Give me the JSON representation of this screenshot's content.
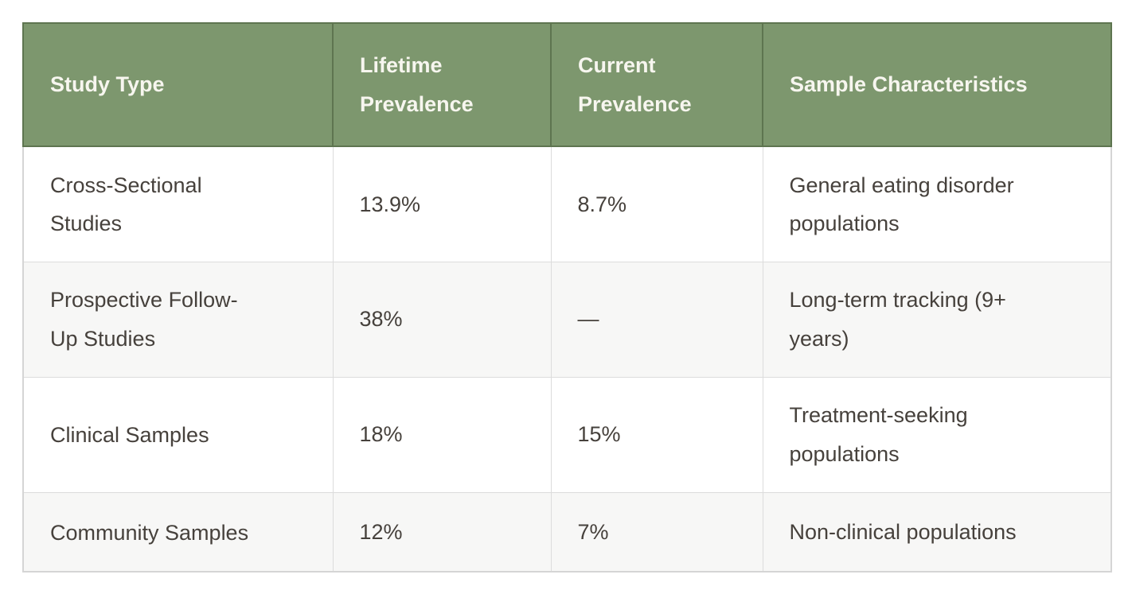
{
  "chart_data": {
    "type": "table",
    "columns": [
      "Study Type",
      "Lifetime Prevalence",
      "Current Prevalence",
      "Sample Characteristics"
    ],
    "rows": [
      [
        "Cross-Sectional Studies",
        "13.9%",
        "8.7%",
        "General eating disorder populations"
      ],
      [
        "Prospective Follow-Up Studies",
        "38%",
        "—",
        "Long-term tracking (9+ years)"
      ],
      [
        "Clinical Samples",
        "18%",
        "15%",
        "Treatment-seeking populations"
      ],
      [
        "Community Samples",
        "12%",
        "7%",
        "Non-clinical populations"
      ]
    ],
    "layout_hints": {
      "header_position": "top",
      "zebra_striping": true,
      "grid": true
    }
  },
  "colors": {
    "header_bg": "#7d976e",
    "header_divider": "#5e7550",
    "header_text": "#f7f6ef",
    "body_text": "#46413c",
    "row_alt_bg": "#f7f7f6",
    "grid_border": "#dcdcdc",
    "outer_border": "#d5d5d5",
    "page_bg": "#ffffff"
  }
}
